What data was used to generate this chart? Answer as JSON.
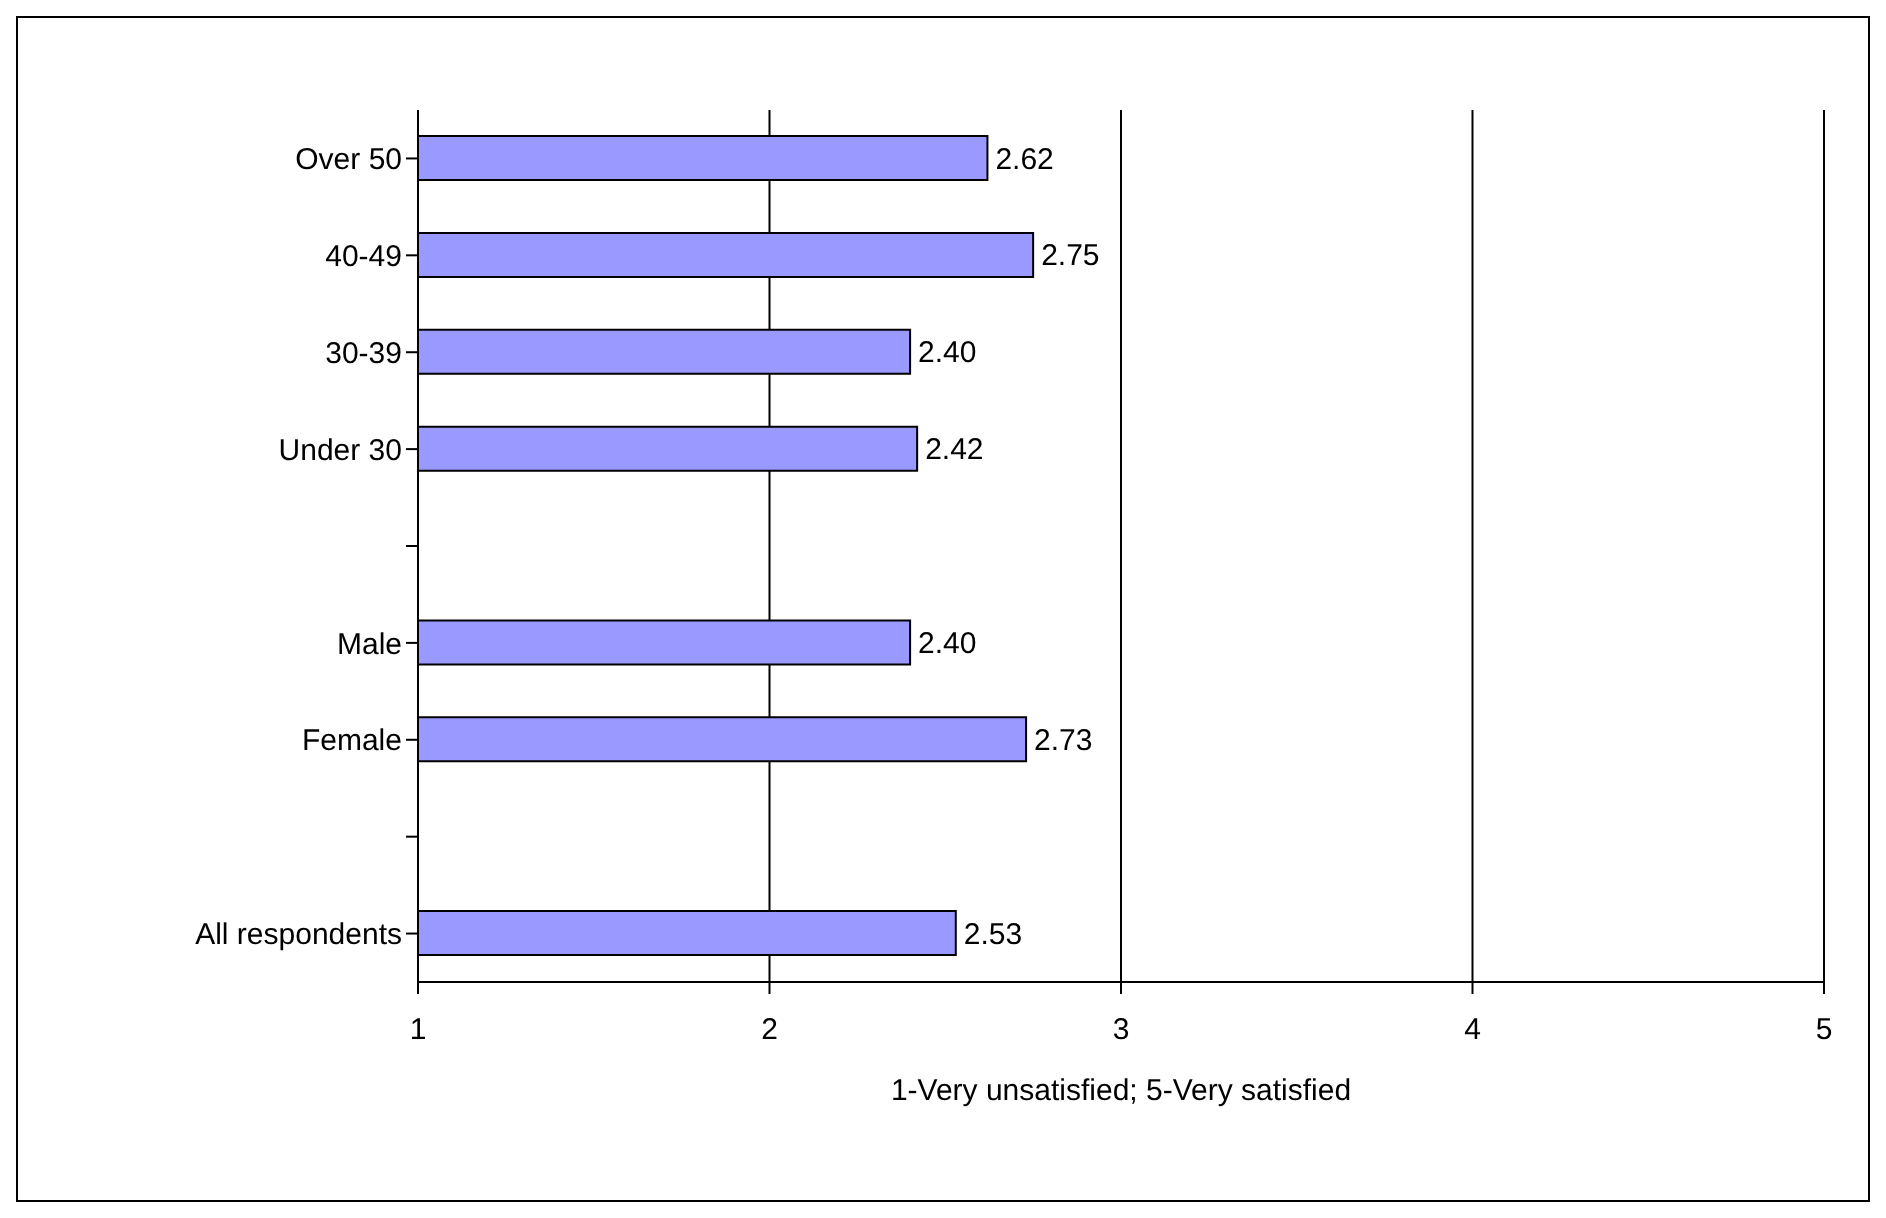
{
  "chart_data": {
    "type": "bar",
    "orientation": "horizontal",
    "xlabel": "1-Very unsatisfied; 5-Very satisfied",
    "categories": [
      "Over 50",
      "40-49",
      "30-39",
      "Under 30",
      null,
      "Male",
      "Female",
      null,
      "All respondents"
    ],
    "values": [
      2.62,
      2.75,
      2.4,
      2.42,
      null,
      2.4,
      2.73,
      null,
      2.53
    ],
    "value_labels": [
      "2.62",
      "2.75",
      "2.40",
      "2.42",
      null,
      "2.40",
      "2.73",
      null,
      "2.53"
    ],
    "color": "#9999ff",
    "xlim": [
      1,
      5
    ],
    "xticks": [
      1,
      2,
      3,
      4,
      5
    ],
    "grid": "x",
    "legend": false
  }
}
